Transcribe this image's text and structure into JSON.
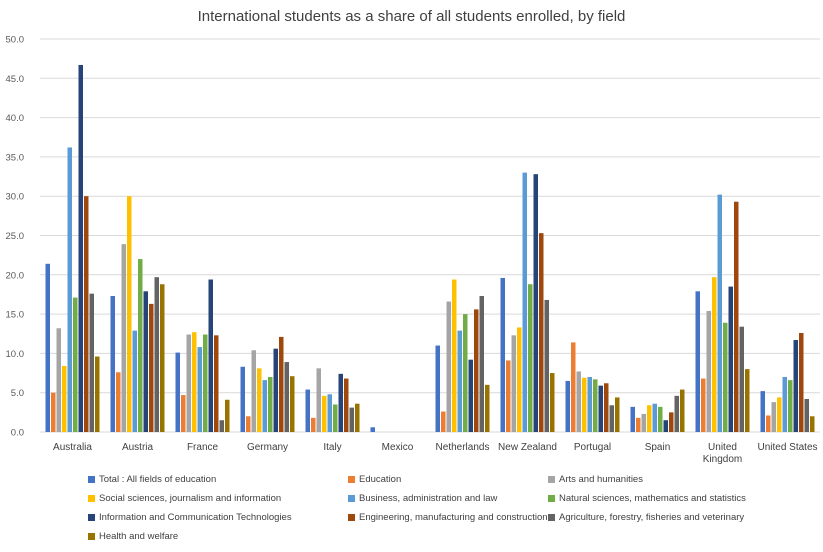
{
  "chart_data": {
    "type": "bar",
    "title": "International students as a share of all students enrolled, by field",
    "xlabel": "",
    "ylabel": "",
    "ylim": [
      0,
      50
    ],
    "yticks": [
      "0.0",
      "5.0",
      "10.0",
      "15.0",
      "20.0",
      "25.0",
      "30.0",
      "35.0",
      "40.0",
      "45.0",
      "50.0"
    ],
    "grid": true,
    "legend_position": "bottom",
    "categories": [
      "Australia",
      "Austria",
      "France",
      "Germany",
      "Italy",
      "Mexico",
      "Netherlands",
      "New Zealand",
      "Portugal",
      "Spain",
      "United Kingdom",
      "United States"
    ],
    "category_labels": [
      [
        "Australia"
      ],
      [
        "Austria"
      ],
      [
        "France"
      ],
      [
        "Germany"
      ],
      [
        "Italy"
      ],
      [
        "Mexico"
      ],
      [
        "Netherlands"
      ],
      [
        "New Zealand"
      ],
      [
        "Portugal"
      ],
      [
        "Spain"
      ],
      [
        "United",
        "Kingdom"
      ],
      [
        "United States"
      ]
    ],
    "series": [
      {
        "name": "Total : All fields of education",
        "color": "#4472C4",
        "values": [
          21.4,
          17.3,
          10.1,
          8.3,
          5.4,
          0.6,
          11.0,
          19.6,
          6.5,
          3.2,
          17.9,
          5.2
        ]
      },
      {
        "name": "Education",
        "color": "#ED7D31",
        "values": [
          5.0,
          7.6,
          4.7,
          2.0,
          1.8,
          null,
          2.6,
          9.1,
          11.4,
          1.8,
          6.8,
          2.1
        ]
      },
      {
        "name": "Arts and humanities",
        "color": "#A5A5A5",
        "values": [
          13.2,
          23.9,
          12.4,
          10.4,
          8.1,
          null,
          16.6,
          12.3,
          7.7,
          2.3,
          15.4,
          3.8
        ]
      },
      {
        "name": "Social sciences, journalism and information",
        "color": "#FFC000",
        "values": [
          8.4,
          30.0,
          12.7,
          8.1,
          4.6,
          null,
          19.4,
          13.3,
          6.9,
          3.4,
          19.7,
          4.4
        ]
      },
      {
        "name": "Business, administration and law",
        "color": "#5B9BD5",
        "values": [
          36.2,
          12.9,
          10.8,
          6.6,
          4.8,
          null,
          12.9,
          33.0,
          7.0,
          3.6,
          30.2,
          7.0
        ]
      },
      {
        "name": "Natural sciences, mathematics and statistics",
        "color": "#70AD47",
        "values": [
          17.1,
          22.0,
          12.4,
          7.0,
          3.5,
          null,
          15.0,
          18.8,
          6.7,
          3.2,
          13.9,
          6.6
        ]
      },
      {
        "name": "Information and Communication Technologies",
        "color": "#264478",
        "values": [
          46.7,
          17.9,
          19.4,
          10.6,
          7.4,
          null,
          9.2,
          32.8,
          5.9,
          1.5,
          18.5,
          11.7
        ]
      },
      {
        "name": "Engineering, manufacturing and construction",
        "color": "#9E480E",
        "values": [
          30.0,
          16.3,
          12.3,
          12.1,
          6.8,
          null,
          15.6,
          25.3,
          6.2,
          2.5,
          29.3,
          12.6
        ]
      },
      {
        "name": "Agriculture, forestry, fisheries and veterinary",
        "color": "#636363",
        "values": [
          17.6,
          19.7,
          1.5,
          8.9,
          3.1,
          null,
          17.3,
          16.8,
          3.4,
          4.6,
          13.4,
          4.2
        ]
      },
      {
        "name": "Health and welfare",
        "color": "#997300",
        "values": [
          9.6,
          18.8,
          4.1,
          7.1,
          3.6,
          null,
          6.0,
          7.5,
          4.4,
          5.4,
          8.0,
          2.0
        ]
      }
    ]
  }
}
